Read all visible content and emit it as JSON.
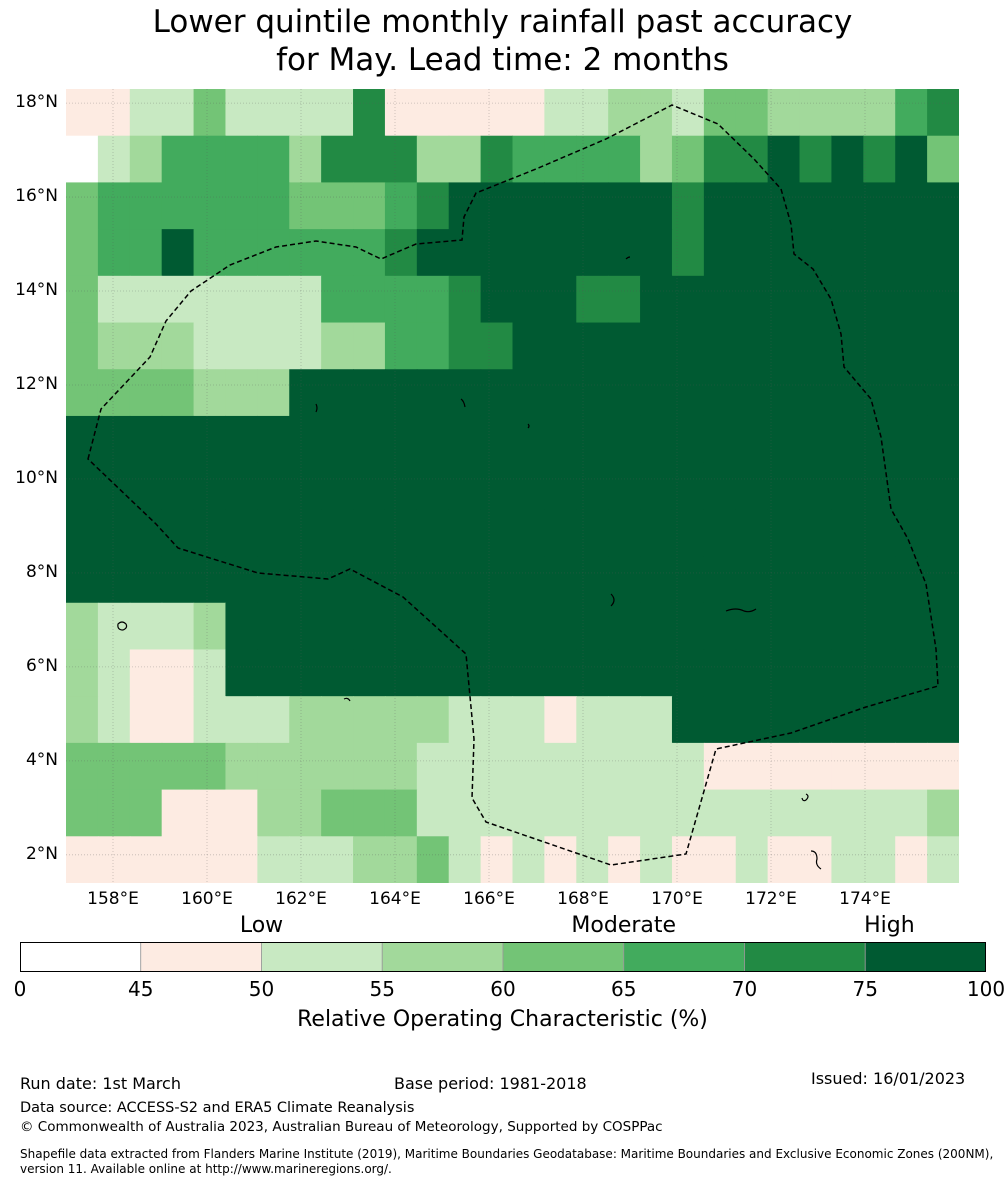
{
  "title_line1": "Lower quintile monthly rainfall past accuracy",
  "title_line2": "for May. Lead time: 2 months",
  "map": {
    "lat_labels": [
      "18°N",
      "16°N",
      "14°N",
      "12°N",
      "10°N",
      "8°N",
      "6°N",
      "4°N",
      "2°N"
    ],
    "lat_values": [
      18,
      16,
      14,
      12,
      10,
      8,
      6,
      4,
      2
    ],
    "lon_labels": [
      "158°E",
      "160°E",
      "162°E",
      "164°E",
      "166°E",
      "168°E",
      "170°E",
      "172°E",
      "174°E"
    ],
    "lon_values": [
      158,
      160,
      162,
      164,
      166,
      168,
      170,
      172,
      174
    ],
    "lon_range": [
      157,
      176
    ],
    "lat_range": [
      1.4,
      18.3
    ],
    "grid_rows_top_to_bottom": [
      "6655355551666665544533444421",
      "7542222411144122224311010103",
      "3222222333210000000100000000",
      "3220222222100000000100000000",
      "3555555522221000110000000000",
      "3444555544221100000000000000",
      "3333444000000000000000000000",
      "0000000000000000000000000000",
      "0000000000000000000000000000",
      "0000000000000000000000000000",
      "0000000000000000000000000000",
      "4555400000000000000000000000",
      "4566500000000000000000000000",
      "4566555444445556555000000000",
      "3333344444455555555566666666",
      "3336664433355555555555555554",
      "6666665554435656565665665565"
    ]
  },
  "colorbar": {
    "categories": [
      {
        "label": "Low",
        "at": 50
      },
      {
        "label": "Moderate",
        "at": 65
      },
      {
        "label": "High",
        "at": 80
      }
    ],
    "bins": [
      {
        "from": 0,
        "to": 45,
        "color": "#ffffff"
      },
      {
        "from": 45,
        "to": 50,
        "color": "#fdebe2"
      },
      {
        "from": 50,
        "to": 55,
        "color": "#c8e9c2"
      },
      {
        "from": 55,
        "to": 60,
        "color": "#a2d99b"
      },
      {
        "from": 60,
        "to": 65,
        "color": "#73c476"
      },
      {
        "from": 65,
        "to": 70,
        "color": "#42ab5d"
      },
      {
        "from": 70,
        "to": 75,
        "color": "#228a44"
      },
      {
        "from": 75,
        "to": 100,
        "color": "#005a32"
      }
    ],
    "ticks": [
      "0",
      "45",
      "50",
      "55",
      "60",
      "65",
      "70",
      "75",
      "100"
    ],
    "tick_values": [
      0,
      45,
      50,
      55,
      60,
      65,
      70,
      75,
      100
    ],
    "title": "Relative Operating Characteristic (%)"
  },
  "footer": {
    "run_date": "Run date: 1st March",
    "base_period": "Base period: 1981-2018",
    "issued": "Issued: 16/01/2023",
    "data_source": "Data source: ACCESS-S2 and ERA5 Climate Reanalysis",
    "copyright": "© Commonwealth of Australia 2023, Australian Bureau of Meteorology, Supported by COSPPac",
    "shapefile": "Shapefile data extracted from Flanders Marine Institute (2019), Maritime Boundaries Geodatabase: Maritime Boundaries and Exclusive Economic Zones (200NM), version 11. Available online at http://www.marineregions.org/."
  }
}
